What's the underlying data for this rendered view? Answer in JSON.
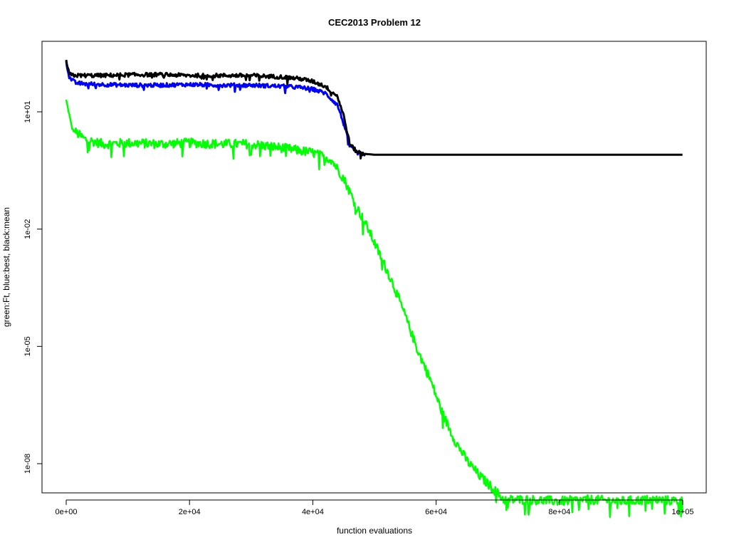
{
  "chart_data": {
    "type": "line",
    "title": "CEC2013 Problem  12",
    "xlabel": "function evaluations",
    "ylabel": "green:Ft, blue:best, black:mean",
    "x_ticks": [
      0,
      20000,
      40000,
      60000,
      80000,
      100000
    ],
    "x_tick_labels": [
      "0e+00",
      "2e+04",
      "4e+04",
      "6e+04",
      "8e+04",
      "1e+05"
    ],
    "y_ticks": [
      10,
      0.01,
      1e-05,
      1e-08
    ],
    "y_tick_labels": [
      "1e+01",
      "1e-02",
      "1e-05",
      "1e-08"
    ],
    "y_scale": "log",
    "xlim": [
      0,
      100000
    ],
    "ylim": [
      5e-10,
      300
    ],
    "grid": false,
    "series": [
      {
        "name": "Ft",
        "color": "#00ff00",
        "x": [
          0,
          1000,
          3000,
          6000,
          10000,
          15000,
          20000,
          25000,
          30000,
          35000,
          40000,
          43000,
          45000,
          47000,
          49000,
          51000,
          53000,
          55000,
          57000,
          59000,
          61000,
          63000,
          65000,
          67000,
          69000,
          71000,
          75000,
          80000,
          85000,
          90000,
          95000,
          100000
        ],
        "y": [
          20,
          3.5,
          2.0,
          1.5,
          1.6,
          1.5,
          1.6,
          1.5,
          1.5,
          1.2,
          0.9,
          0.6,
          0.2,
          0.04,
          0.01,
          0.002,
          0.0004,
          6e-05,
          8e-06,
          1.5e-06,
          2e-07,
          4e-08,
          1.2e-08,
          5e-09,
          2.5e-09,
          1.2e-09,
          1.2e-09,
          1.1e-09,
          1.2e-09,
          1.1e-09,
          1.2e-09,
          1.1e-09
        ]
      },
      {
        "name": "best",
        "color": "#0000ff",
        "x": [
          0,
          500,
          1500,
          3000,
          6000,
          10000,
          15000,
          20000,
          25000,
          30000,
          35000,
          38000,
          40000,
          42000,
          44000,
          45000,
          46000,
          47000,
          48000
        ],
        "y": [
          200,
          75,
          55,
          52,
          50,
          48,
          48,
          50,
          48,
          48,
          45,
          42,
          38,
          30,
          15,
          5,
          1.3,
          0.95,
          0.8
        ]
      },
      {
        "name": "mean",
        "color": "#000000",
        "x": [
          0,
          500,
          1500,
          3000,
          6000,
          10000,
          15000,
          20000,
          25000,
          30000,
          35000,
          38000,
          40000,
          42000,
          44000,
          45000,
          46000,
          47000,
          48000,
          50000,
          60000,
          70000,
          80000,
          90000,
          100000
        ],
        "y": [
          200,
          90,
          85,
          85,
          85,
          88,
          90,
          85,
          85,
          85,
          78,
          70,
          60,
          45,
          25,
          8,
          1.5,
          1.0,
          0.85,
          0.8,
          0.8,
          0.8,
          0.8,
          0.8,
          0.8
        ]
      }
    ]
  }
}
